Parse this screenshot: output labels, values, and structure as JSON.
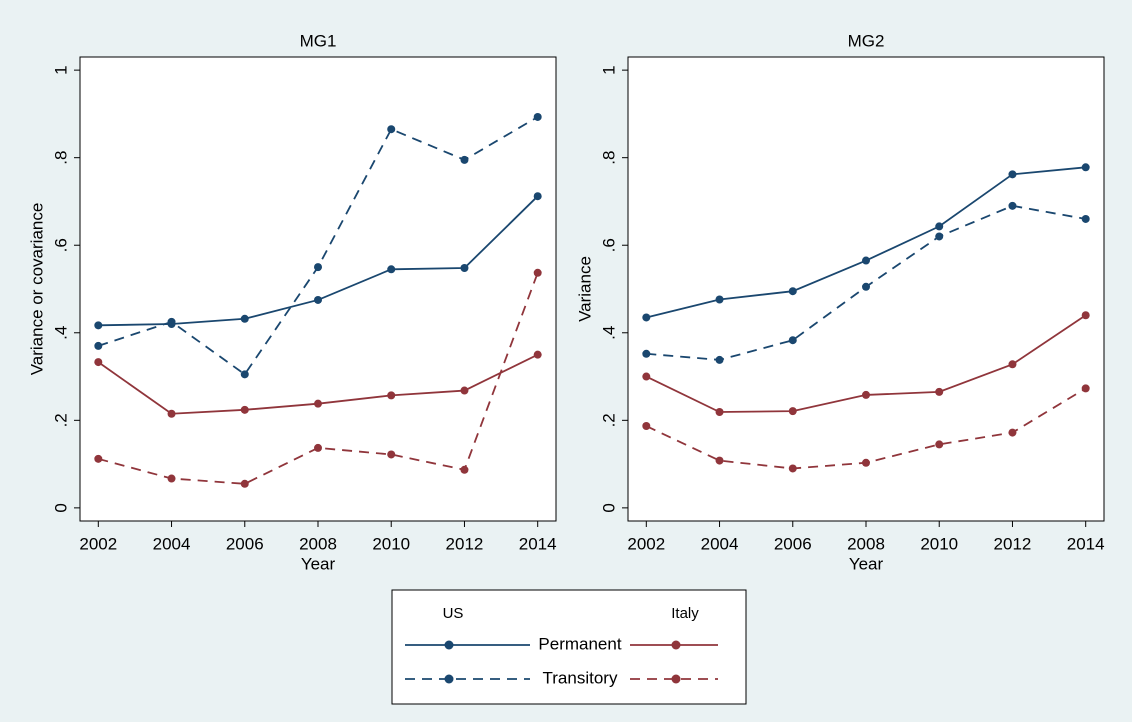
{
  "chart_data": [
    {
      "type": "line",
      "title": "MG1",
      "xlabel": "Year",
      "ylabel": "Variance or covariance",
      "x": [
        2002,
        2004,
        2006,
        2008,
        2010,
        2012,
        2014
      ],
      "xlim": [
        2001.5,
        2014.5
      ],
      "xticks": [
        2002,
        2004,
        2006,
        2008,
        2010,
        2012,
        2014
      ],
      "ylim": [
        -0.03,
        1.03
      ],
      "yticks": [
        0,
        {
          "value": 0.2,
          "label": ".2"
        },
        {
          "value": 0.4,
          "label": ".4"
        },
        {
          "value": 0.6,
          "label": ".6"
        },
        {
          "value": 0.8,
          "label": ".8"
        },
        1
      ],
      "series": [
        {
          "color": "#1a476f",
          "dashed": false,
          "values": [
            0.417,
            0.42,
            0.432,
            0.475,
            0.545,
            0.548,
            0.712
          ]
        },
        {
          "color": "#1a476f",
          "dashed": true,
          "values": [
            0.37,
            0.425,
            0.305,
            0.55,
            0.865,
            0.795,
            0.893
          ]
        },
        {
          "color": "#90353b",
          "dashed": false,
          "values": [
            0.333,
            0.215,
            0.224,
            0.238,
            0.257,
            0.268,
            0.35
          ]
        },
        {
          "color": "#90353b",
          "dashed": true,
          "values": [
            0.112,
            0.067,
            0.055,
            0.137,
            0.122,
            0.087,
            0.537
          ]
        }
      ]
    },
    {
      "type": "line",
      "title": "MG2",
      "xlabel": "Year",
      "ylabel": "Variance",
      "x": [
        2002,
        2004,
        2006,
        2008,
        2010,
        2012,
        2014
      ],
      "xlim": [
        2001.5,
        2014.5
      ],
      "xticks": [
        2002,
        2004,
        2006,
        2008,
        2010,
        2012,
        2014
      ],
      "ylim": [
        -0.03,
        1.03
      ],
      "yticks": [
        0,
        {
          "value": 0.2,
          "label": ".2"
        },
        {
          "value": 0.4,
          "label": ".4"
        },
        {
          "value": 0.6,
          "label": ".6"
        },
        {
          "value": 0.8,
          "label": ".8"
        },
        1
      ],
      "series": [
        {
          "color": "#1a476f",
          "dashed": false,
          "values": [
            0.435,
            0.476,
            0.495,
            0.565,
            0.643,
            0.762,
            0.778
          ]
        },
        {
          "color": "#1a476f",
          "dashed": true,
          "values": [
            0.352,
            0.338,
            0.383,
            0.505,
            0.62,
            0.69,
            0.66
          ]
        },
        {
          "color": "#90353b",
          "dashed": false,
          "values": [
            0.3,
            0.219,
            0.221,
            0.258,
            0.265,
            0.328,
            0.44
          ]
        },
        {
          "color": "#90353b",
          "dashed": true,
          "values": [
            0.187,
            0.108,
            0.09,
            0.103,
            0.145,
            0.172,
            0.273
          ]
        }
      ]
    }
  ],
  "legend": {
    "columns": [
      {
        "label": "US",
        "color": "#1a476f"
      },
      {
        "label": "Italy",
        "color": "#90353b"
      }
    ],
    "rows": [
      {
        "label": "Permanent",
        "dashed": false
      },
      {
        "label": "Transitory",
        "dashed": true
      }
    ]
  }
}
